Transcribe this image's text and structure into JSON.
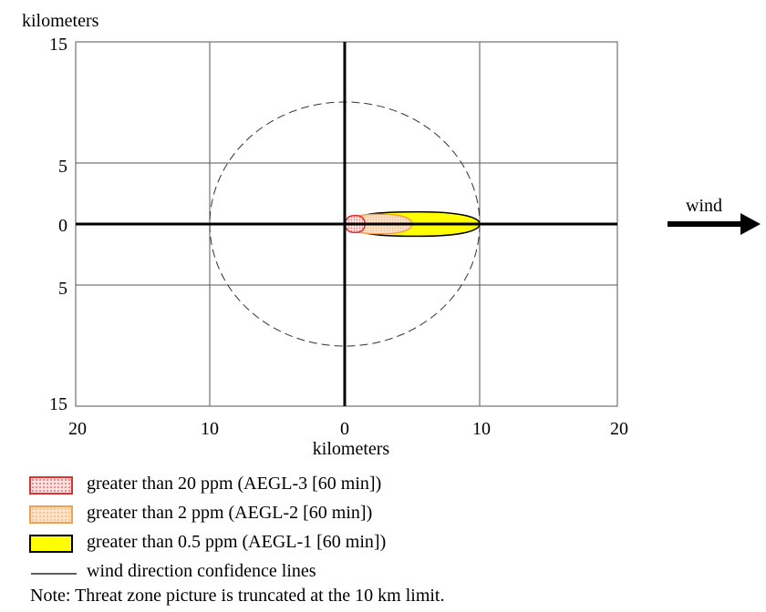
{
  "chart_data": {
    "type": "threat-zone-plot",
    "ylabel": "kilometers",
    "xlabel": "kilometers",
    "x_ticks": [
      "20",
      "10",
      "0",
      "10",
      "20"
    ],
    "y_ticks": [
      "15",
      "5",
      "0",
      "5",
      "15"
    ],
    "xlim": [
      -20,
      20
    ],
    "ylim": [
      -15,
      15
    ],
    "grid": true,
    "wind_label": "wind",
    "confidence_circle_radius_km": 10,
    "zones": [
      {
        "name": "greater than 20 ppm (AEGL-3 [60 min])",
        "start_km": 0,
        "length_km": 1.5,
        "half_width_km": 0.7,
        "color": "#e03030"
      },
      {
        "name": "greater than 2 ppm (AEGL-2 [60 min])",
        "start_km": 0,
        "length_km": 5.0,
        "half_width_km": 0.8,
        "color": "#f4b884"
      },
      {
        "name": "greater than 0.5 ppm (AEGL-1 [60 min])",
        "start_km": 0,
        "length_km": 10.0,
        "half_width_km": 1.0,
        "color": "#ffff00"
      }
    ]
  },
  "legend": {
    "items": [
      {
        "label": "greater than 20 ppm (AEGL-3 [60 min])"
      },
      {
        "label": "greater than 2 ppm (AEGL-2 [60 min])"
      },
      {
        "label": "greater than 0.5 ppm (AEGL-1 [60 min])"
      },
      {
        "label": "wind direction confidence lines"
      }
    ]
  },
  "note": "Note: Threat zone picture is truncated at the 10 km limit."
}
